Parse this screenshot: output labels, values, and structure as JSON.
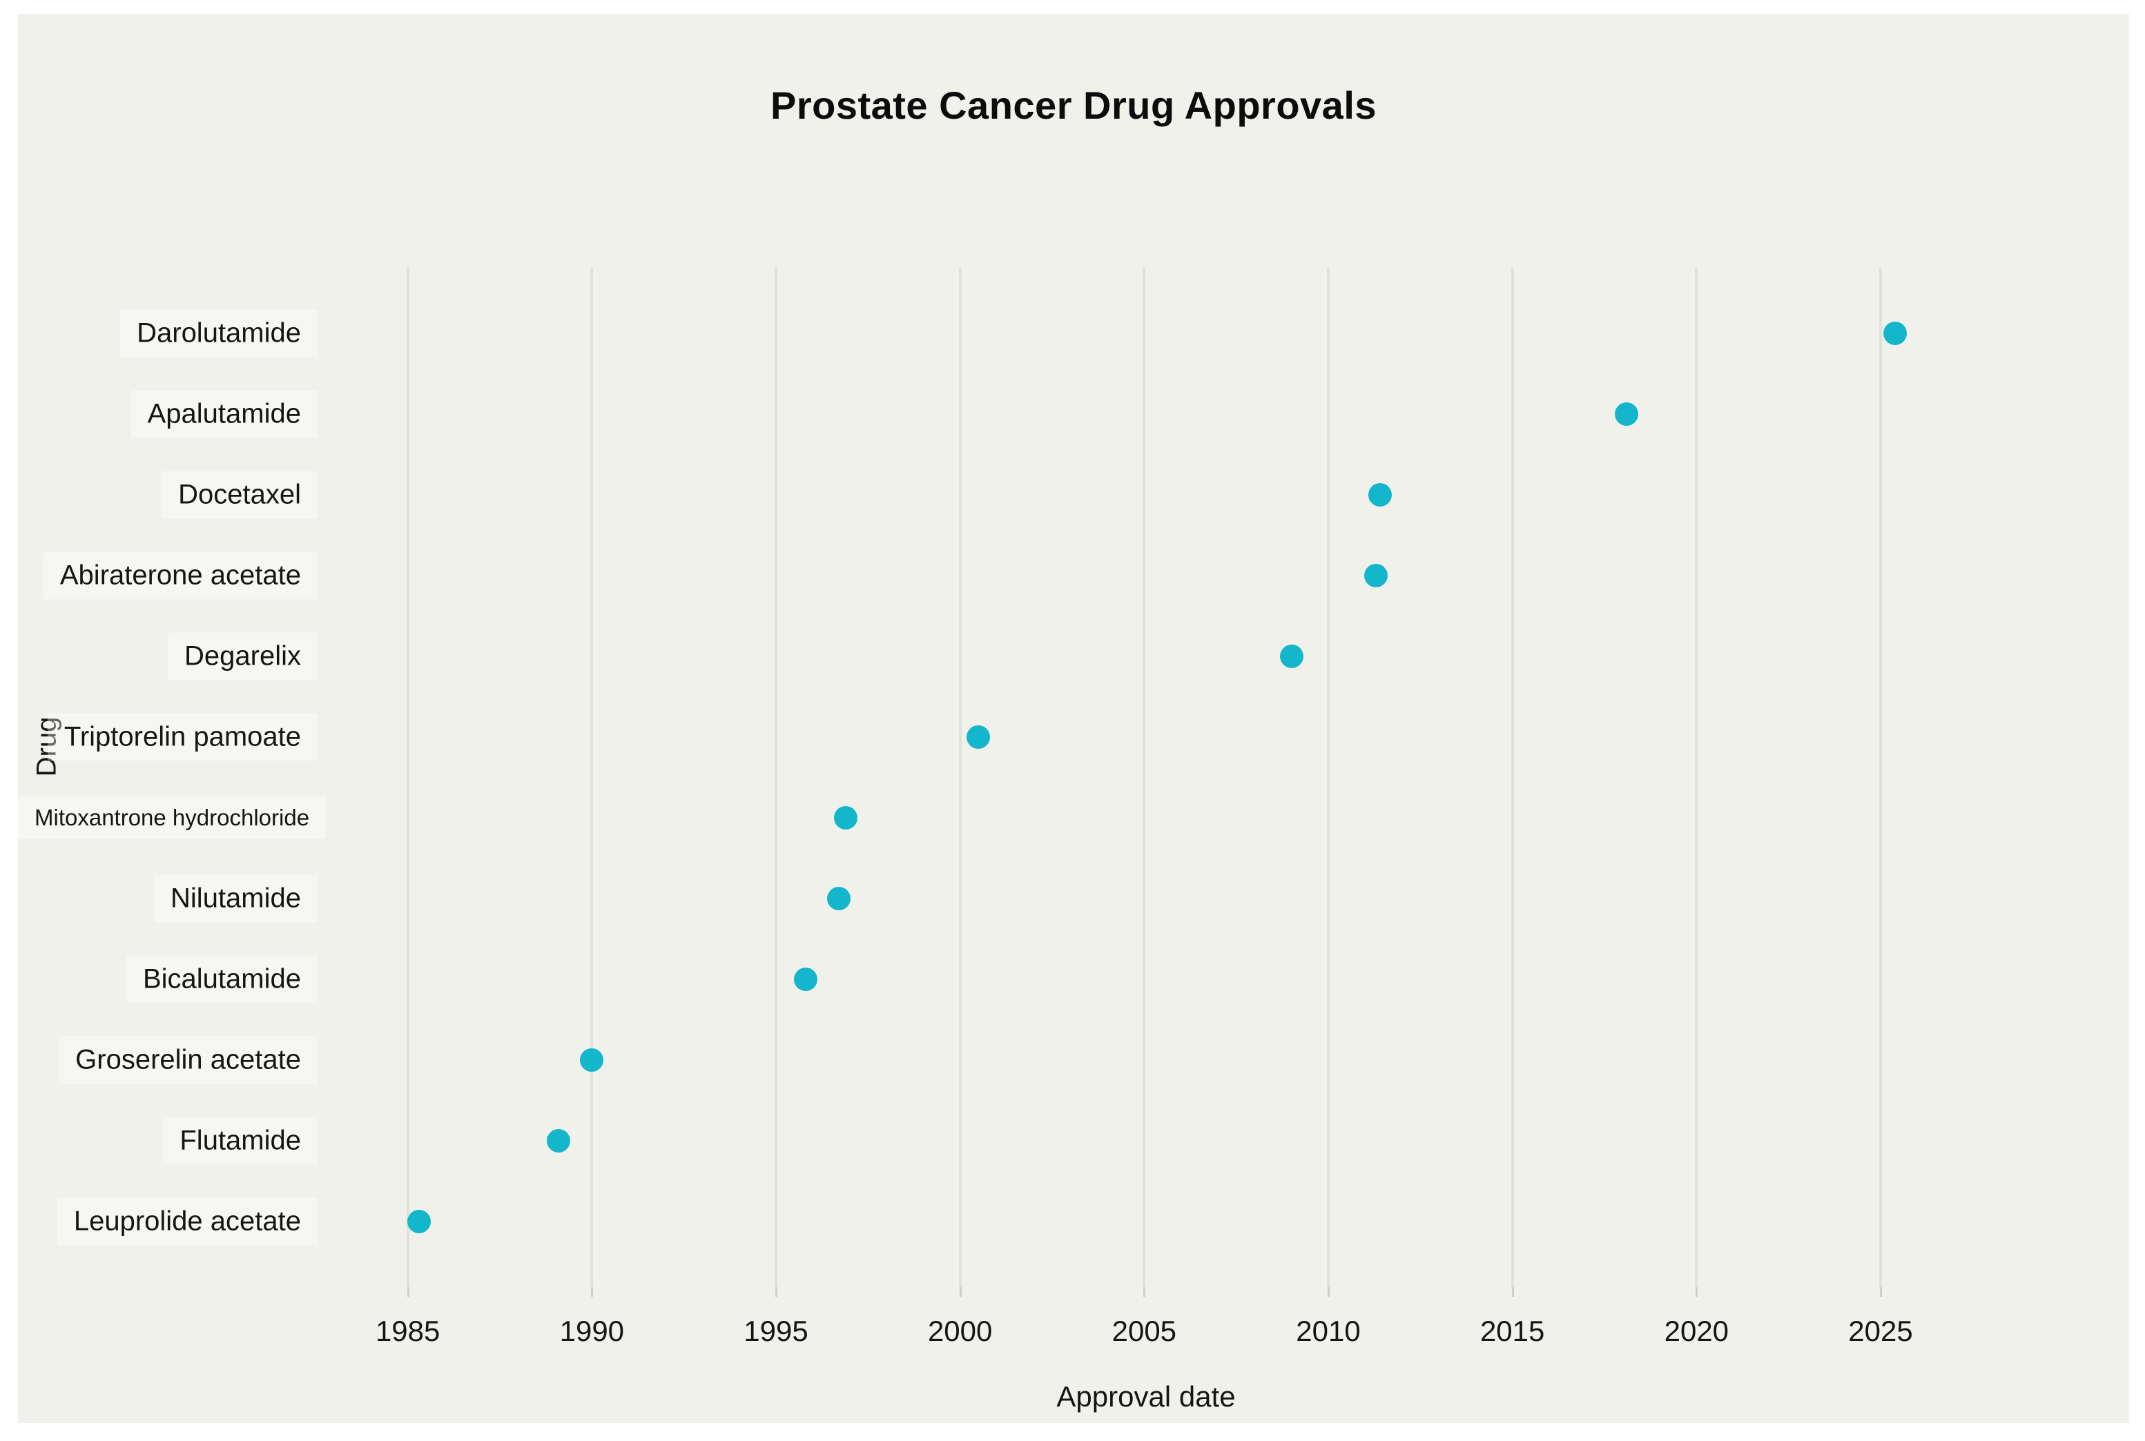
{
  "page": {
    "background": "#ffffff"
  },
  "figure": {
    "background": "#f1f1eb"
  },
  "chart_data": {
    "type": "scatter",
    "title": "Prostate Cancer Drug Approvals",
    "xlabel": "Approval date",
    "ylabel": "Drug",
    "legend": "none",
    "grid": "vertical-only",
    "point_color": "#14b6cb",
    "gridline_color": "#e1e1db",
    "x_ticks": [
      1985,
      1990,
      1995,
      2000,
      2005,
      2010,
      2015,
      2020,
      2025
    ],
    "xlim": [
      1983.3,
      2026.8
    ],
    "categories_top_to_bottom": [
      "Darolutamide",
      "Apalutamide",
      "Docetaxel",
      "Abiraterone acetate",
      "Degarelix",
      "Triptorelin pamoate",
      "Mitoxantrone hydrochloride",
      "Nilutamide",
      "Bicalutamide",
      "Groserelin acetate",
      "Flutamide",
      "Leuprolide acetate"
    ],
    "points": [
      {
        "drug": "Darolutamide",
        "approval_year": 2025.4,
        "small_label": false
      },
      {
        "drug": "Apalutamide",
        "approval_year": 2018.1,
        "small_label": false
      },
      {
        "drug": "Docetaxel",
        "approval_year": 2011.4,
        "small_label": false
      },
      {
        "drug": "Abiraterone acetate",
        "approval_year": 2011.3,
        "small_label": false
      },
      {
        "drug": "Degarelix",
        "approval_year": 2009.0,
        "small_label": false
      },
      {
        "drug": "Triptorelin pamoate",
        "approval_year": 2000.5,
        "small_label": false
      },
      {
        "drug": "Mitoxantrone hydrochloride",
        "approval_year": 1996.9,
        "small_label": true
      },
      {
        "drug": "Nilutamide",
        "approval_year": 1996.7,
        "small_label": false
      },
      {
        "drug": "Bicalutamide",
        "approval_year": 1995.8,
        "small_label": false
      },
      {
        "drug": "Groserelin acetate",
        "approval_year": 1990.0,
        "small_label": false
      },
      {
        "drug": "Flutamide",
        "approval_year": 1989.1,
        "small_label": false
      },
      {
        "drug": "Leuprolide acetate",
        "approval_year": 1985.3,
        "small_label": false
      }
    ]
  }
}
